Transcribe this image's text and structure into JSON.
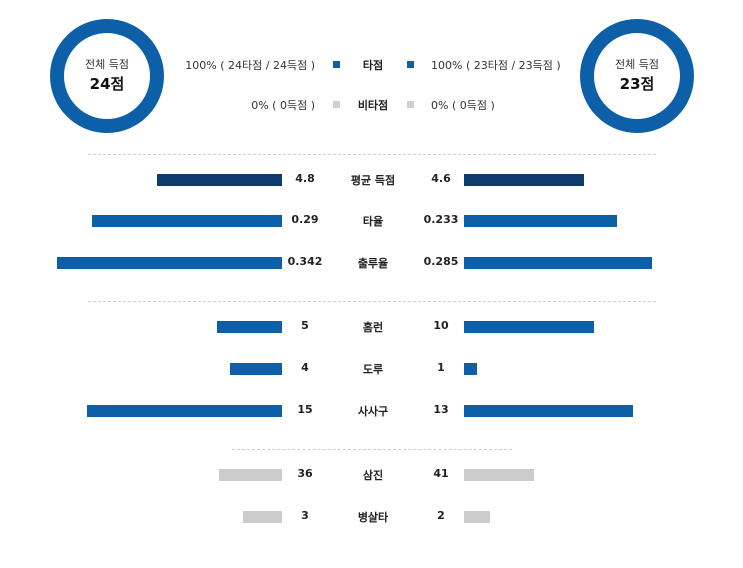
{
  "colors": {
    "avg_bar": "#0e3c6e",
    "team_bar": "#0d60a8",
    "gray_bar": "#cccccc",
    "legend_gray": "#cfcfcf",
    "ring": "#0d60a8"
  },
  "header": {
    "left_team": {
      "label": "전체 득점",
      "score": "24점"
    },
    "right_team": {
      "label": "전체 득점",
      "score": "23점"
    },
    "legend": [
      {
        "category": "타점",
        "left": "100% ( 24타점 / 24득점 )",
        "right": "100% ( 23타점 / 23득점 )",
        "color_key": "team_bar"
      },
      {
        "category": "비타점",
        "left": "0% ( 0득점 )",
        "right": "0% ( 0득점 )",
        "color_key": "legend_gray"
      }
    ]
  },
  "chart_data": {
    "type": "bar",
    "orientation": "horizontal-mirrored",
    "groups": [
      {
        "rows": [
          {
            "category": "평균 득점",
            "left": 4.8,
            "right": 4.6,
            "left_label": "4.8",
            "right_label": "4.6",
            "color_key": "avg_bar"
          },
          {
            "category": "타율",
            "left": 0.29,
            "right": 0.233,
            "left_label": "0.29",
            "right_label": "0.233",
            "color_key": "team_bar"
          },
          {
            "category": "출루율",
            "left": 0.342,
            "right": 0.285,
            "left_label": "0.342",
            "right_label": "0.285",
            "color_key": "team_bar"
          }
        ]
      },
      {
        "rows": [
          {
            "category": "홈런",
            "left": 5,
            "right": 10,
            "left_label": "5",
            "right_label": "10",
            "color_key": "team_bar"
          },
          {
            "category": "도루",
            "left": 4,
            "right": 1,
            "left_label": "4",
            "right_label": "1",
            "color_key": "team_bar"
          },
          {
            "category": "사사구",
            "left": 15,
            "right": 13,
            "left_label": "15",
            "right_label": "13",
            "color_key": "team_bar"
          }
        ]
      },
      {
        "rows": [
          {
            "category": "삼진",
            "left": 36,
            "right": 41,
            "left_label": "36",
            "right_label": "41",
            "color_key": "gray_bar"
          },
          {
            "category": "병살타",
            "left": 3,
            "right": 2,
            "left_label": "3",
            "right_label": "2",
            "color_key": "gray_bar"
          }
        ]
      }
    ]
  }
}
